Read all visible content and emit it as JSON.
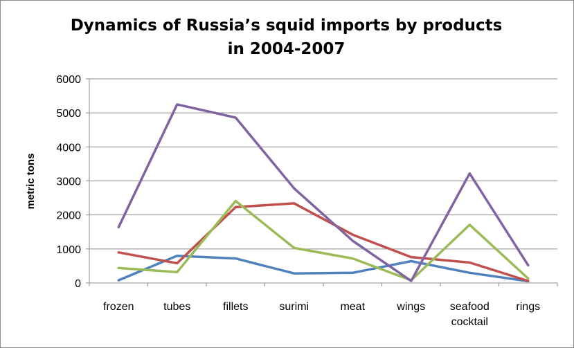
{
  "chart_data": {
    "type": "line",
    "title_line1": "Dynamics of Russia’s squid imports by products",
    "title_line2": "in 2004-2007",
    "xlabel": "",
    "ylabel": "metric tons",
    "ylim": [
      0,
      6000
    ],
    "yticks": [
      0,
      1000,
      2000,
      3000,
      4000,
      5000,
      6000
    ],
    "grid": true,
    "categories": [
      "frozen",
      "tubes",
      "fillets",
      "surimi",
      "meat",
      "wings",
      "seafood cocktail",
      "rings"
    ],
    "series": [
      {
        "color": "#4f81bd",
        "values": [
          80,
          800,
          720,
          280,
          300,
          640,
          300,
          50
        ]
      },
      {
        "color": "#c0504d",
        "values": [
          900,
          580,
          2230,
          2340,
          1420,
          760,
          600,
          60
        ]
      },
      {
        "color": "#9bbb59",
        "values": [
          440,
          320,
          2410,
          1030,
          720,
          80,
          1710,
          130
        ]
      },
      {
        "color": "#8064a2",
        "values": [
          1640,
          5250,
          4860,
          2780,
          1240,
          60,
          3220,
          520
        ]
      }
    ]
  }
}
